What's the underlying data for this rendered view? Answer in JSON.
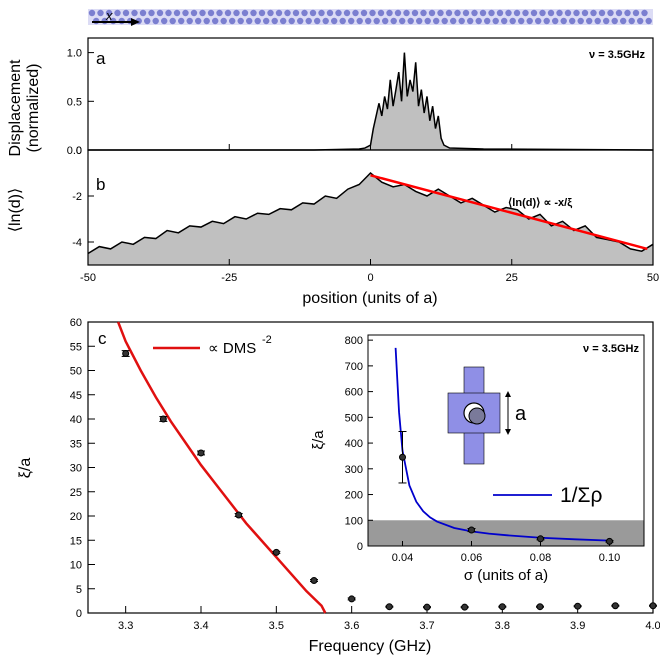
{
  "chart_data": [
    {
      "type": "area",
      "panel": "a",
      "annotation": "ν = 3.5GHz",
      "ylabel_line1": "Displacement",
      "ylabel_line2": "(normalized)",
      "x_ticks": [],
      "y_ticks": [
        "0.0",
        "0.5",
        "1.0"
      ],
      "xlim": [
        -50,
        50
      ],
      "ylim": [
        0,
        1.15
      ],
      "series": [
        {
          "x": [
            -50,
            -10,
            -2,
            -1,
            0,
            0.5,
            1,
            1.5,
            2,
            2.5,
            3,
            3.5,
            4,
            4.5,
            5,
            5.5,
            6,
            6.5,
            7,
            7.5,
            8,
            8.5,
            9,
            9.5,
            10,
            10.5,
            11,
            11.5,
            12,
            12.5,
            13,
            14,
            20,
            50
          ],
          "y": [
            0,
            0,
            0.01,
            0.02,
            0.05,
            0.22,
            0.35,
            0.48,
            0.35,
            0.55,
            0.42,
            0.72,
            0.45,
            0.62,
            0.8,
            0.5,
            1.0,
            0.55,
            0.72,
            0.6,
            0.9,
            0.45,
            0.62,
            0.38,
            0.55,
            0.3,
            0.45,
            0.22,
            0.35,
            0.12,
            0.05,
            0.02,
            0.01,
            0.0
          ]
        }
      ]
    },
    {
      "type": "area",
      "panel": "b",
      "annotation": "⟨ln(d)⟩ ∝ -x/ξ",
      "ylabel": "⟨ln(d)⟩",
      "xlabel": "position (units of a)",
      "x_ticks": [
        "-50",
        "-25",
        "0",
        "25",
        "50"
      ],
      "y_ticks": [
        "-4",
        "-2",
        "0"
      ],
      "xlim": [
        -50,
        50
      ],
      "ylim": [
        -5,
        0
      ],
      "series": [
        {
          "x": [
            -50,
            -48,
            -46,
            -44,
            -42,
            -40,
            -38,
            -36,
            -34,
            -32,
            -30,
            -28,
            -26,
            -24,
            -22,
            -20,
            -18,
            -16,
            -14,
            -12,
            -10,
            -8,
            -6,
            -4,
            -2,
            0,
            2,
            4,
            6,
            8,
            10,
            12,
            14,
            16,
            18,
            20,
            22,
            24,
            26,
            28,
            30,
            32,
            34,
            36,
            38,
            40,
            42,
            44,
            46,
            48,
            50
          ],
          "y": [
            -4.5,
            -4.2,
            -4.3,
            -4.0,
            -4.1,
            -3.8,
            -3.85,
            -3.5,
            -3.6,
            -3.3,
            -3.35,
            -3.1,
            -3.2,
            -2.9,
            -3.0,
            -2.75,
            -2.8,
            -2.55,
            -2.6,
            -2.3,
            -2.35,
            -2.0,
            -2.1,
            -1.7,
            -1.5,
            -1.0,
            -1.4,
            -1.6,
            -1.5,
            -1.8,
            -2.0,
            -1.7,
            -2.0,
            -2.3,
            -2.1,
            -2.4,
            -2.7,
            -2.5,
            -2.6,
            -3.0,
            -2.8,
            -3.3,
            -3.1,
            -3.5,
            -3.3,
            -3.8,
            -3.9,
            -4.0,
            -4.3,
            -4.4,
            -4.1
          ]
        },
        {
          "name": "fit",
          "x": [
            0,
            49
          ],
          "y": [
            -1.1,
            -4.3
          ]
        }
      ]
    },
    {
      "type": "scatter",
      "panel": "c",
      "xlabel": "Frequency (GHz)",
      "ylabel": "ξ/a",
      "x_ticks": [
        "3.3",
        "3.4",
        "3.5",
        "3.6",
        "3.7",
        "3.8",
        "3.9",
        "4.0"
      ],
      "y_ticks": [
        "0",
        "5",
        "10",
        "15",
        "20",
        "25",
        "30",
        "35",
        "40",
        "45",
        "50",
        "55",
        "60"
      ],
      "xlim": [
        3.25,
        4.0
      ],
      "ylim": [
        0,
        60
      ],
      "legend_label": "∝ DMS",
      "legend_exponent": "-2",
      "series": [
        {
          "x": [
            3.3,
            3.35,
            3.4,
            3.45,
            3.5,
            3.55,
            3.6,
            3.65,
            3.7,
            3.75,
            3.8,
            3.85,
            3.9,
            3.95,
            4.0
          ],
          "y": [
            53.5,
            40.0,
            33.0,
            20.2,
            12.5,
            6.7,
            2.9,
            1.3,
            1.2,
            1.2,
            1.3,
            1.3,
            1.4,
            1.5,
            1.5
          ],
          "err": [
            0.6,
            0.5,
            0.4,
            0.3,
            0.2,
            0.2,
            0.2,
            0.1,
            0.1,
            0.1,
            0.1,
            0.1,
            0.1,
            0.1,
            0.1
          ]
        },
        {
          "x": [
            3.29,
            3.3,
            3.32,
            3.34,
            3.36,
            3.38,
            3.4,
            3.42,
            3.44,
            3.46,
            3.48,
            3.5,
            3.52,
            3.54,
            3.56,
            3.565
          ],
          "y": [
            60,
            56,
            50,
            44.5,
            39.5,
            35,
            30.5,
            26.5,
            22.5,
            18.5,
            15,
            11.5,
            8,
            4.5,
            1.5,
            0
          ]
        }
      ]
    },
    {
      "type": "scatter",
      "panel": "c-inset",
      "annotation": "ν = 3.5GHz",
      "xlabel": "σ (units of a)",
      "ylabel": "ξ/a",
      "x_ticks": [
        "0.04",
        "0.06",
        "0.08",
        "0.10"
      ],
      "y_ticks": [
        "0",
        "100",
        "200",
        "300",
        "400",
        "500",
        "600",
        "700",
        "800"
      ],
      "xlim": [
        0.03,
        0.11
      ],
      "ylim": [
        0,
        820
      ],
      "shaded_band": [
        0,
        100
      ],
      "legend_label": "1/Σρ",
      "schematic_label": "a",
      "series": [
        {
          "x": [
            0.04,
            0.06,
            0.08,
            0.1
          ],
          "y": [
            345,
            62,
            28,
            18
          ],
          "err": [
            100,
            6,
            4,
            3
          ]
        },
        {
          "x": [
            0.038,
            0.039,
            0.04,
            0.042,
            0.044,
            0.046,
            0.048,
            0.05,
            0.055,
            0.06,
            0.065,
            0.07,
            0.08,
            0.09,
            0.1
          ],
          "y": [
            770,
            520,
            370,
            235,
            172,
            135,
            111,
            95,
            70,
            57,
            48,
            42,
            32,
            26,
            21
          ]
        }
      ]
    }
  ],
  "colors": {
    "fill": "#c0c0c0",
    "line": "#000000",
    "fit": "#ff0000",
    "dms": "#e01010",
    "inset_curve": "#0000cc",
    "band": "#9a9a9a",
    "chain": "#7b7fd0",
    "schematic": "#8f8fe6"
  }
}
